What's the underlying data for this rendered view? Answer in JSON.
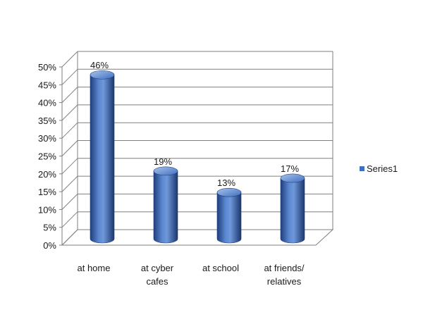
{
  "chart_data": {
    "type": "bar",
    "categories": [
      "at home",
      "at cyber cafes",
      "at school",
      "at friends/ relatives"
    ],
    "category_lines": [
      [
        "at home"
      ],
      [
        "at cyber",
        "cafes"
      ],
      [
        "at school"
      ],
      [
        "at friends/",
        "relatives"
      ]
    ],
    "series": [
      {
        "name": "Series1",
        "values": [
          46,
          19,
          13,
          17
        ]
      }
    ],
    "data_labels": [
      "46%",
      "19%",
      "13%",
      "17%"
    ],
    "y_ticks": [
      "0%",
      "5%",
      "10%",
      "15%",
      "20%",
      "25%",
      "30%",
      "35%",
      "40%",
      "45%",
      "50%"
    ],
    "ylim": [
      0,
      50
    ],
    "grid": true,
    "legend_position": "right",
    "bar_shape": "3d-cylinder",
    "colors": {
      "bar": "#3f6fc0",
      "bar_dark": "#1f3f7a",
      "bar_light": "#a8c3ec",
      "grid": "#7f7f7f",
      "legend": "#3f6fc0"
    }
  }
}
